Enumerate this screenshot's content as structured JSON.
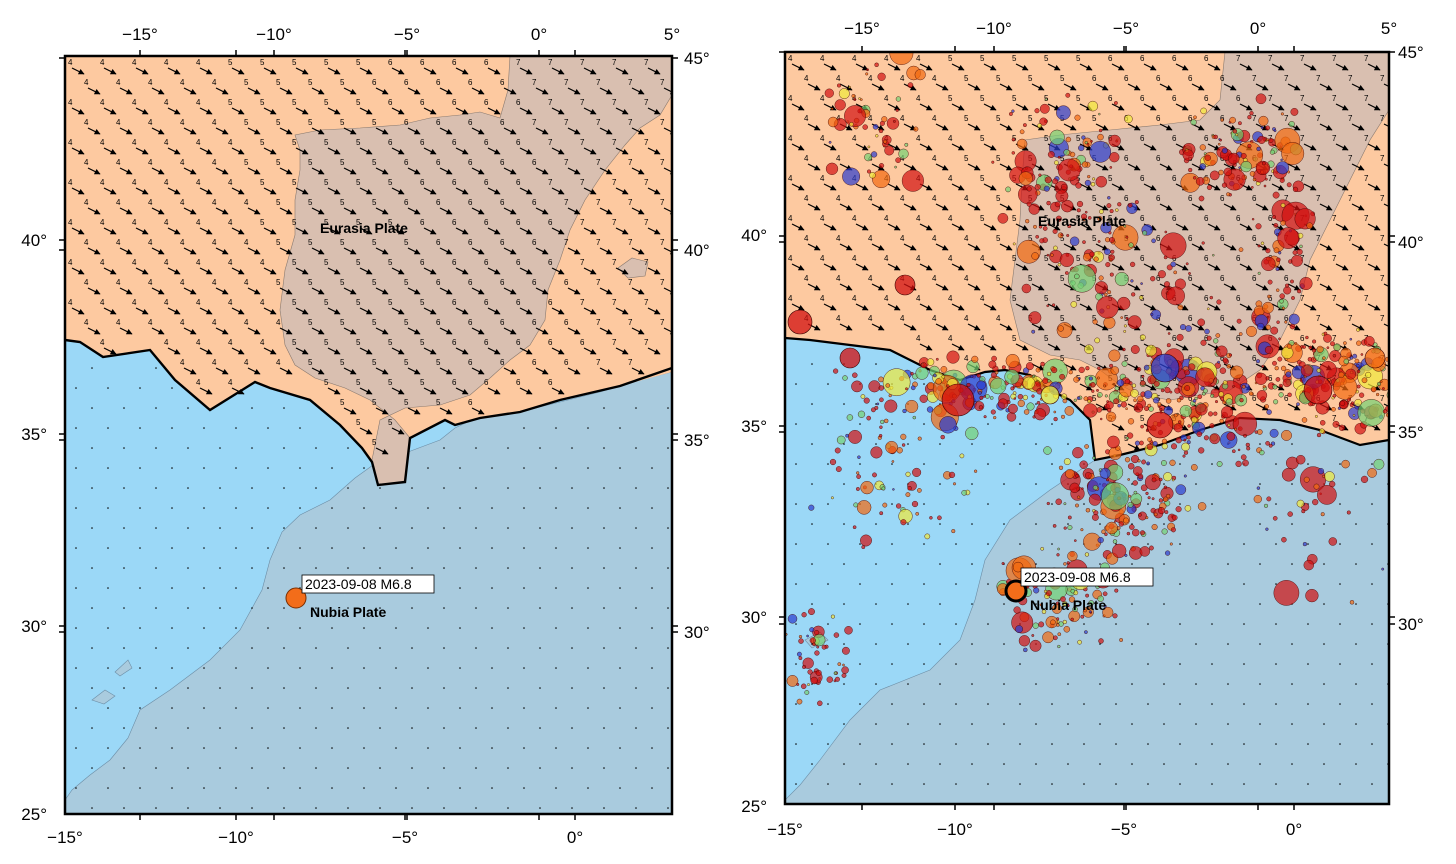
{
  "left_map": {
    "top_ticks": [
      "−15°",
      "−10°",
      "−5°",
      "0°",
      "5°"
    ],
    "bottom_ticks": [
      "−15°",
      "−10°",
      "−5°",
      "0°"
    ],
    "left_ticks": [
      "40°",
      "35°",
      "30°",
      "25°"
    ],
    "right_ticks": [
      "45°",
      "40°",
      "35°",
      "30°"
    ],
    "plate_eurasia": "Eurasia Plate",
    "plate_nubia": "Nubia Plate",
    "event_label": "2023-09-08 M6.8"
  },
  "right_map": {
    "top_ticks": [
      "−15°",
      "−10°",
      "−5°",
      "0°",
      "5°"
    ],
    "bottom_ticks": [
      "−15°",
      "−10°",
      "−5°",
      "0°"
    ],
    "left_ticks": [
      "40°",
      "35°",
      "30°",
      "25°"
    ],
    "right_ticks": [
      "45°",
      "40°",
      "35°",
      "30°"
    ],
    "plate_eurasia": "Eurasia Plate",
    "plate_nubia": "Nubia Plate",
    "event_label": "2023-09-08 M6.8"
  },
  "colors": {
    "eurasia_sea": "#fdc9a0",
    "eurasia_land": "#d9bfb0",
    "nubia_sea": "#9bd8f7",
    "nubia_land": "#a9cbde",
    "event": "#f36d1a",
    "quake_red": "#d10f0f",
    "quake_orange": "#f26a10",
    "quake_yellow": "#f0e93a",
    "quake_green": "#73d273",
    "quake_blue": "#2a3ccf"
  },
  "vectors": {
    "eurasia_rate_values": [
      "4",
      "5",
      "6",
      "7"
    ],
    "nubia_rate": "."
  },
  "seismicity_legend": "none"
}
